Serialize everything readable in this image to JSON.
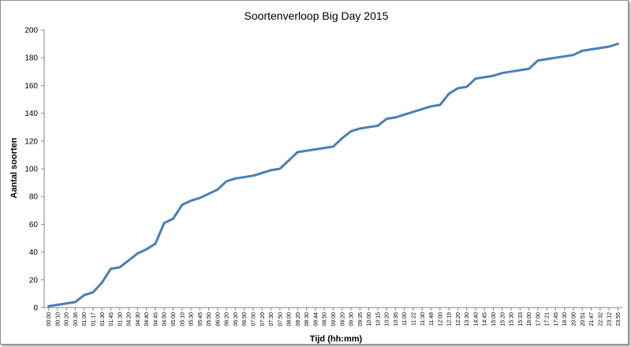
{
  "chart_data": {
    "type": "line",
    "title": "Soortenverloop Big Day 2015",
    "xlabel": "Tijd (hh:mm)",
    "ylabel": "Aantal soorten",
    "ylim": [
      0,
      200
    ],
    "yticks": [
      0,
      20,
      40,
      60,
      80,
      100,
      120,
      140,
      160,
      180,
      200
    ],
    "grid": false,
    "legend": "none",
    "line_color": "#4a7fb5",
    "categories": [
      "00:00",
      "00:10",
      "00:20",
      "00:36",
      "01:00",
      "01:17",
      "01:30",
      "01:45",
      "01:30",
      "04:20",
      "04:30",
      "04:40",
      "04:45",
      "04:50",
      "05:00",
      "05:10",
      "05:30",
      "05:45",
      "05:50",
      "06:00",
      "06:20",
      "06:30",
      "06:50",
      "07:00",
      "07:20",
      "07:30",
      "07:50",
      "08:00",
      "08:20",
      "08:30",
      "08:44",
      "08:50",
      "09:00",
      "09:20",
      "09:30",
      "09:35",
      "10:00",
      "10:15",
      "10:20",
      "10:35",
      "11:00",
      "11:22",
      "11:30",
      "11:48",
      "12:00",
      "12:19",
      "12:20",
      "13:30",
      "14:40",
      "14:45",
      "15:00",
      "15:20",
      "15:30",
      "15:33",
      "16:00",
      "17:00",
      "17:21",
      "17:45",
      "18:30",
      "20:00",
      "20:51",
      "21:47",
      "22:32",
      "23:12",
      "23:55"
    ],
    "values": [
      1,
      2,
      3,
      4,
      9,
      11,
      18,
      28,
      29,
      34,
      39,
      42,
      46,
      61,
      64,
      74,
      77,
      79,
      82,
      85,
      91,
      93,
      94,
      95,
      97,
      99,
      100,
      106,
      112,
      113,
      114,
      115,
      116,
      122,
      127,
      129,
      130,
      131,
      136,
      137,
      139,
      141,
      143,
      145,
      146,
      154,
      158,
      159,
      165,
      166,
      167,
      169,
      170,
      171,
      172,
      178,
      179,
      180,
      181,
      182,
      185,
      186,
      187,
      188,
      190
    ]
  }
}
